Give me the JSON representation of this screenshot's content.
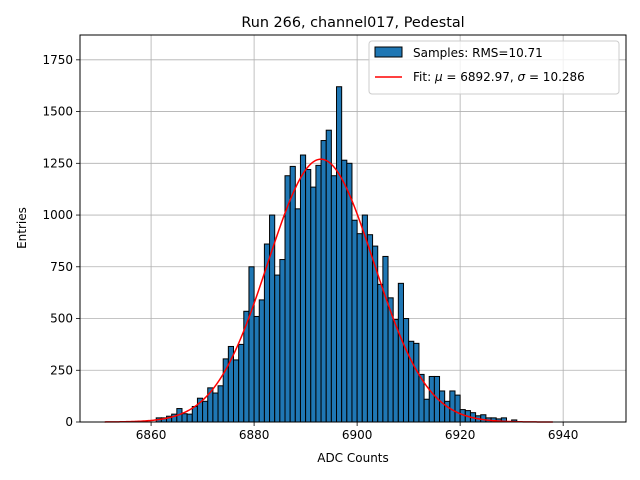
{
  "chart_data": {
    "type": "bar",
    "title": "Run 266, channel017, Pedestal",
    "xlabel": "ADC Counts",
    "ylabel": "Entries",
    "xlim": [
      6846.2,
      6952.2
    ],
    "ylim": [
      0,
      1870
    ],
    "xticks": [
      6860,
      6880,
      6900,
      6920,
      6940
    ],
    "yticks": [
      0,
      250,
      500,
      750,
      1000,
      1250,
      1500,
      1750
    ],
    "grid": true,
    "legend_position": "top-right",
    "colors": {
      "bars": "#1f77b4",
      "bar_edge": "#000000",
      "fit": "#ff0000",
      "grid": "#b0b0b0"
    },
    "histogram": {
      "name": "Samples: RMS=10.71",
      "bin_start": 6851,
      "bin_width": 1,
      "counts": [
        0,
        0,
        0,
        0,
        0,
        0,
        0,
        1,
        0,
        0,
        20,
        20,
        28,
        38,
        65,
        40,
        38,
        75,
        115,
        100,
        165,
        140,
        175,
        305,
        365,
        300,
        375,
        535,
        750,
        510,
        590,
        860,
        1000,
        710,
        785,
        1190,
        1235,
        1030,
        1290,
        1220,
        1135,
        1240,
        1360,
        1410,
        1190,
        1620,
        1265,
        1250,
        975,
        910,
        1000,
        905,
        850,
        665,
        800,
        600,
        495,
        670,
        500,
        390,
        380,
        230,
        110,
        220,
        220,
        150,
        100,
        150,
        130,
        60,
        55,
        45,
        30,
        35,
        20,
        20,
        15,
        20,
        0,
        10
      ]
    },
    "fit": {
      "name": "Fit: μ = 6892.97, σ = 10.286",
      "label_prefix": "Fit: ",
      "mu_symbol": "μ",
      "sigma_symbol": "σ",
      "mu_text": " = 6892.97, ",
      "sigma_text": " = 10.286",
      "mu": 6892.97,
      "sigma": 10.286,
      "amplitude": 1270,
      "x_range": [
        6851,
        6938
      ]
    }
  }
}
